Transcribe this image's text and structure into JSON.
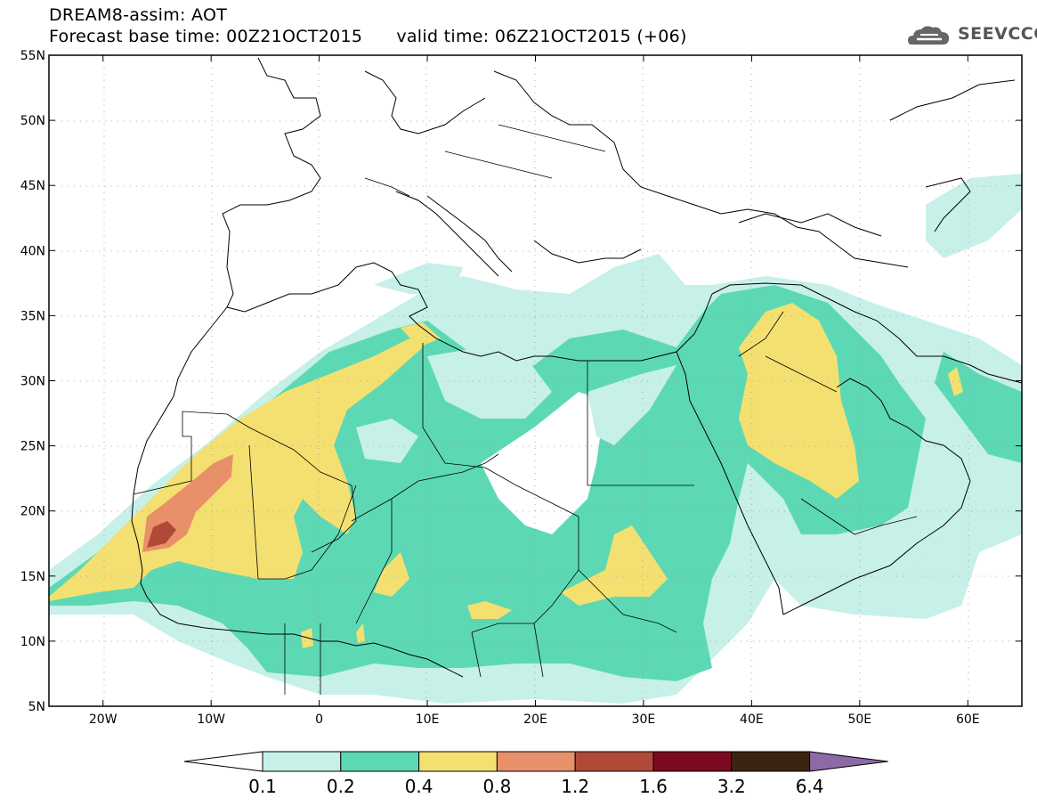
{
  "header": {
    "title_line1": "DREAM8-assim: AOT",
    "title_line2": "Forecast base time: 00Z21OCT2015      valid time: 06Z21OCT2015 (+06)",
    "logo_text": "SEEVCCC"
  },
  "map": {
    "lon_range": [
      -25,
      65
    ],
    "lat_range": [
      5,
      55
    ],
    "lon_ticks": [
      -20,
      -10,
      0,
      10,
      20,
      30,
      40,
      50,
      60
    ],
    "lon_tick_labels": [
      "20W",
      "10W",
      "0",
      "10E",
      "20E",
      "30E",
      "40E",
      "50E",
      "60E"
    ],
    "lat_ticks": [
      5,
      10,
      15,
      20,
      25,
      30,
      35,
      40,
      45,
      50,
      55
    ],
    "lat_tick_labels": [
      "5N",
      "10N",
      "15N",
      "20N",
      "25N",
      "30N",
      "35N",
      "40N",
      "45N",
      "50N",
      "55N"
    ],
    "grid": true
  },
  "colorbar": {
    "levels": [
      "0.1",
      "0.2",
      "0.4",
      "0.8",
      "1.2",
      "1.6",
      "3.2",
      "6.4"
    ],
    "colors": [
      "#ffffff",
      "#c6f0e8",
      "#5cd9b4",
      "#f4e070",
      "#e8906a",
      "#b04a38",
      "#7a0a20",
      "#3c2410",
      "#8c6aa8"
    ]
  }
}
